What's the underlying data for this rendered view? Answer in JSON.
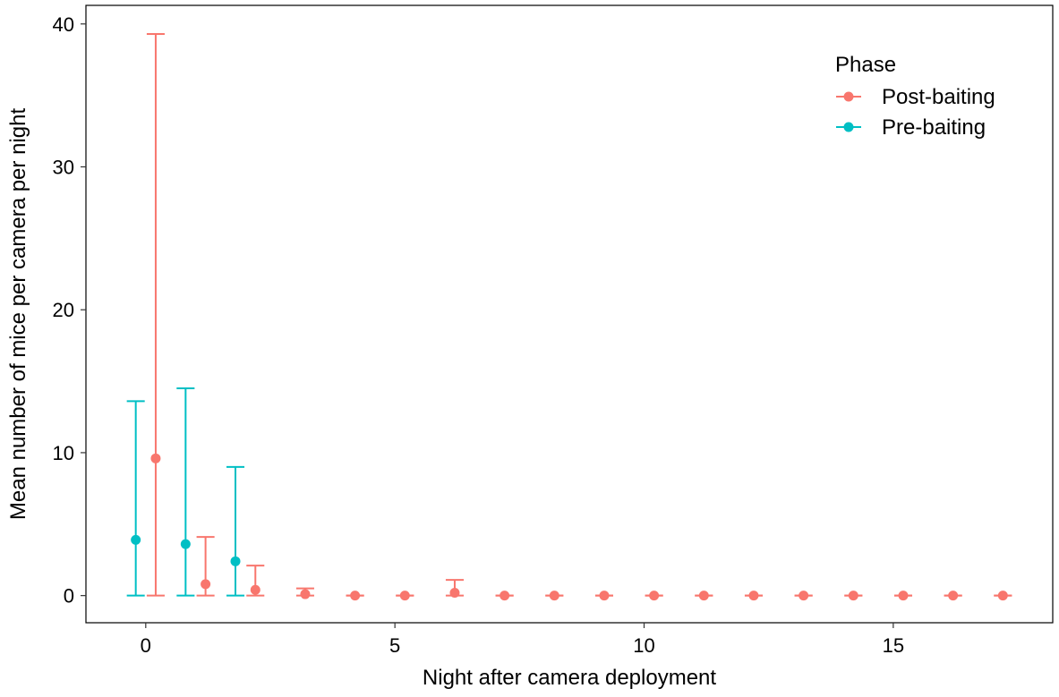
{
  "chart_data": {
    "type": "scatter",
    "title": "",
    "xlabel": "Night after camera deployment",
    "ylabel": "Mean number of mice per camera per night",
    "xlim": [
      -1.2,
      18.2
    ],
    "ylim": [
      -1.9,
      41.3
    ],
    "x_ticks": [
      0,
      5,
      10,
      15
    ],
    "x_tick_labels": [
      "0",
      "5",
      "10",
      "15"
    ],
    "y_ticks": [
      0,
      10,
      20,
      30,
      40
    ],
    "y_tick_labels": [
      "0",
      "10",
      "20",
      "30",
      "40"
    ],
    "grid": false,
    "legend": {
      "title": "Phase",
      "placement": "top-right",
      "entries": [
        "Post-baiting",
        "Pre-baiting"
      ]
    },
    "series": [
      {
        "name": "Post-baiting",
        "color": "#F8766D",
        "points": [
          {
            "x": 0,
            "y": 9.6,
            "ymin": 0,
            "ymax": 39.3
          },
          {
            "x": 1,
            "y": 0.8,
            "ymin": 0,
            "ymax": 4.1
          },
          {
            "x": 2,
            "y": 0.4,
            "ymin": 0,
            "ymax": 2.1
          },
          {
            "x": 3,
            "y": 0.1,
            "ymin": 0,
            "ymax": 0.5
          },
          {
            "x": 4,
            "y": 0,
            "ymin": 0,
            "ymax": 0
          },
          {
            "x": 5,
            "y": 0,
            "ymin": 0,
            "ymax": 0
          },
          {
            "x": 6,
            "y": 0.2,
            "ymin": 0,
            "ymax": 1.1
          },
          {
            "x": 7,
            "y": 0,
            "ymin": 0,
            "ymax": 0
          },
          {
            "x": 8,
            "y": 0,
            "ymin": 0,
            "ymax": 0
          },
          {
            "x": 9,
            "y": 0,
            "ymin": 0,
            "ymax": 0
          },
          {
            "x": 10,
            "y": 0,
            "ymin": 0,
            "ymax": 0
          },
          {
            "x": 11,
            "y": 0,
            "ymin": 0,
            "ymax": 0
          },
          {
            "x": 12,
            "y": 0,
            "ymin": 0,
            "ymax": 0
          },
          {
            "x": 13,
            "y": 0,
            "ymin": 0,
            "ymax": 0
          },
          {
            "x": 14,
            "y": 0,
            "ymin": 0,
            "ymax": 0
          },
          {
            "x": 15,
            "y": 0,
            "ymin": 0,
            "ymax": 0
          },
          {
            "x": 16,
            "y": 0,
            "ymin": 0,
            "ymax": 0
          },
          {
            "x": 17,
            "y": 0,
            "ymin": 0,
            "ymax": 0
          }
        ]
      },
      {
        "name": "Pre-baiting",
        "color": "#00BFC4",
        "points": [
          {
            "x": 0,
            "y": 3.9,
            "ymin": 0,
            "ymax": 13.6
          },
          {
            "x": 1,
            "y": 3.6,
            "ymin": 0,
            "ymax": 14.5
          },
          {
            "x": 2,
            "y": 2.4,
            "ymin": 0,
            "ymax": 9.0
          }
        ]
      }
    ]
  }
}
